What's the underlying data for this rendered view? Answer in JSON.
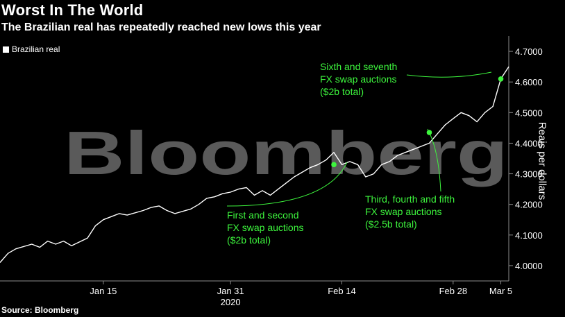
{
  "header": {
    "title": "Worst In The World",
    "subtitle": "The Brazilian real has repeatedly reached new lows this year"
  },
  "footer": {
    "source": "Source: Bloomberg"
  },
  "watermark": "Bloomberg",
  "colors": {
    "line": "#ffffff",
    "annotation": "#3df53d",
    "axis": "#8c8c8c",
    "watermark": "#5a5a5a"
  },
  "chart_data": {
    "type": "line",
    "ylabel": "Reais per dollars",
    "ylim": [
      3.95,
      4.75
    ],
    "yticks": [
      {
        "value": 4.0,
        "label": "4.0000"
      },
      {
        "value": 4.1,
        "label": "4.1000"
      },
      {
        "value": 4.2,
        "label": "4.2000"
      },
      {
        "value": 4.3,
        "label": "4.3000"
      },
      {
        "value": 4.4,
        "label": "4.4000"
      },
      {
        "value": 4.5,
        "label": "4.5000"
      },
      {
        "value": 4.6,
        "label": "4.6000"
      },
      {
        "value": 4.7,
        "label": "4.7000"
      }
    ],
    "xlim": [
      "2020-01-02",
      "2020-03-06"
    ],
    "xticks": [
      {
        "date": "2020-01-15",
        "label": "Jan 15"
      },
      {
        "date": "2020-01-31",
        "label": "Jan 31",
        "sublabel": "2020"
      },
      {
        "date": "2020-02-14",
        "label": "Feb 14"
      },
      {
        "date": "2020-02-28",
        "label": "Feb 28"
      },
      {
        "date": "2020-03-05",
        "label": "Mar 5"
      }
    ],
    "legend": {
      "position": "top-left",
      "entries": [
        "Brazilian real"
      ]
    },
    "series": [
      {
        "name": "Brazilian real",
        "points": [
          [
            "2020-01-02",
            4.01
          ],
          [
            "2020-01-03",
            4.04
          ],
          [
            "2020-01-04",
            4.055
          ],
          [
            "2020-01-06",
            4.07
          ],
          [
            "2020-01-07",
            4.06
          ],
          [
            "2020-01-08",
            4.08
          ],
          [
            "2020-01-09",
            4.07
          ],
          [
            "2020-01-10",
            4.08
          ],
          [
            "2020-01-11",
            4.065
          ],
          [
            "2020-01-13",
            4.09
          ],
          [
            "2020-01-14",
            4.13
          ],
          [
            "2020-01-15",
            4.15
          ],
          [
            "2020-01-16",
            4.16
          ],
          [
            "2020-01-17",
            4.17
          ],
          [
            "2020-01-18",
            4.165
          ],
          [
            "2020-01-20",
            4.18
          ],
          [
            "2020-01-21",
            4.19
          ],
          [
            "2020-01-22",
            4.195
          ],
          [
            "2020-01-23",
            4.18
          ],
          [
            "2020-01-24",
            4.17
          ],
          [
            "2020-01-26",
            4.185
          ],
          [
            "2020-01-27",
            4.2
          ],
          [
            "2020-01-28",
            4.22
          ],
          [
            "2020-01-29",
            4.225
          ],
          [
            "2020-01-30",
            4.235
          ],
          [
            "2020-01-31",
            4.24
          ],
          [
            "2020-02-01",
            4.25
          ],
          [
            "2020-02-02",
            4.255
          ],
          [
            "2020-02-03",
            4.23
          ],
          [
            "2020-02-04",
            4.245
          ],
          [
            "2020-02-05",
            4.23
          ],
          [
            "2020-02-06",
            4.25
          ],
          [
            "2020-02-07",
            4.27
          ],
          [
            "2020-02-08",
            4.29
          ],
          [
            "2020-02-09",
            4.305
          ],
          [
            "2020-02-10",
            4.32
          ],
          [
            "2020-02-11",
            4.33
          ],
          [
            "2020-02-12",
            4.345
          ],
          [
            "2020-02-13",
            4.37
          ],
          [
            "2020-02-14",
            4.33
          ],
          [
            "2020-02-15",
            4.34
          ],
          [
            "2020-02-16",
            4.33
          ],
          [
            "2020-02-17",
            4.29
          ],
          [
            "2020-02-18",
            4.3
          ],
          [
            "2020-02-19",
            4.33
          ],
          [
            "2020-02-20",
            4.34
          ],
          [
            "2020-02-21",
            4.36
          ],
          [
            "2020-02-22",
            4.37
          ],
          [
            "2020-02-23",
            4.38
          ],
          [
            "2020-02-24",
            4.39
          ],
          [
            "2020-02-25",
            4.4
          ],
          [
            "2020-02-26",
            4.43
          ],
          [
            "2020-02-27",
            4.46
          ],
          [
            "2020-02-28",
            4.48
          ],
          [
            "2020-02-29",
            4.5
          ],
          [
            "2020-03-01",
            4.49
          ],
          [
            "2020-03-02",
            4.47
          ],
          [
            "2020-03-03",
            4.5
          ],
          [
            "2020-03-04",
            4.52
          ],
          [
            "2020-03-05",
            4.61
          ],
          [
            "2020-03-06",
            4.65
          ]
        ]
      }
    ],
    "annotations": [
      {
        "id": "first-second",
        "date": "2020-02-13",
        "value": 4.33,
        "lines": [
          "First and second",
          "FX swap auctions",
          "($2b total)"
        ]
      },
      {
        "id": "third-fifth",
        "date": "2020-02-25",
        "value": 4.435,
        "lines": [
          "Third, fourth and fifth",
          "FX swap auctions",
          "($2.5b total)"
        ]
      },
      {
        "id": "sixth-seventh",
        "date": "2020-03-05",
        "value": 4.61,
        "lines": [
          "Sixth and seventh",
          "FX swap auctions",
          "($2b total)"
        ]
      }
    ]
  }
}
